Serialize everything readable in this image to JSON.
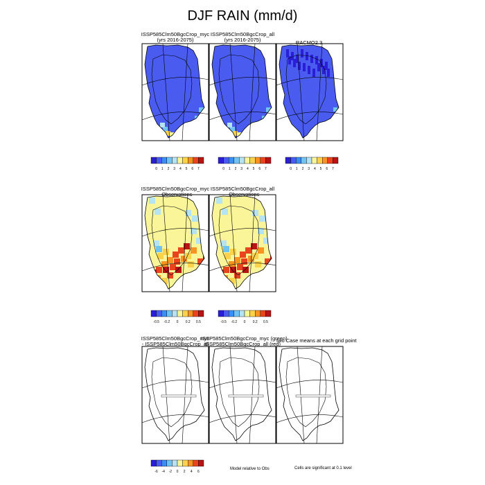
{
  "title": "DJF RAIN (mm/d)",
  "panels": [
    {
      "id": "p1",
      "title_lines": [
        "ISSP585Clm50BgcCrop_myc",
        "(yrs 2016-2075)"
      ],
      "kind": "field"
    },
    {
      "id": "p2",
      "title_lines": [
        "ISSP585Clm50BgcCrop_all",
        "(yrs 2016-2075)"
      ],
      "kind": "field"
    },
    {
      "id": "p3",
      "title_lines": [
        "RACMO2.3"
      ],
      "kind": "obs"
    },
    {
      "id": "p4",
      "title_lines": [
        "ISSP585Clm50BgcCrop_myc",
        "- Observations"
      ],
      "kind": "diff"
    },
    {
      "id": "p5",
      "title_lines": [
        "ISSP585Clm50BgcCrop_all",
        "- Observations"
      ],
      "kind": "diff"
    },
    {
      "id": "p6",
      "title_lines": [
        "ISSP585Clm50BgcCrop_myc",
        "- ISSP585Clm50BgcCrop_all"
      ],
      "kind": "blank"
    },
    {
      "id": "p7",
      "title_lines": [
        "ISSP585Clm50BgcCrop_myc (green)",
        "ISSP585Clm50BgcCrop_all (red)"
      ],
      "kind": "blank"
    },
    {
      "id": "p8",
      "title_lines": [
        "two Case means at each grid point"
      ],
      "kind": "blank"
    }
  ],
  "colorbars": [
    {
      "id": "cb1",
      "ticks": [
        "0",
        "1",
        "2",
        "3",
        "4",
        "5",
        "6",
        "7"
      ],
      "colors": [
        "#2a1fd6",
        "#4a5cf0",
        "#3a8ef7",
        "#72c3f2",
        "#b6e3f2",
        "#fbf59a",
        "#fbd24a",
        "#f99321",
        "#e8451e",
        "#b81414"
      ]
    },
    {
      "id": "cb2",
      "ticks": [
        "0",
        "1",
        "2",
        "3",
        "4",
        "5",
        "6",
        "7"
      ],
      "colors": [
        "#2a1fd6",
        "#4a5cf0",
        "#3a8ef7",
        "#72c3f2",
        "#b6e3f2",
        "#fbf59a",
        "#fbd24a",
        "#f99321",
        "#e8451e",
        "#b81414"
      ]
    },
    {
      "id": "cb3",
      "ticks": [
        "0",
        "1",
        "2",
        "3",
        "4",
        "5",
        "6",
        "7"
      ],
      "colors": [
        "#2a1fd6",
        "#4a5cf0",
        "#3a8ef7",
        "#72c3f2",
        "#b6e3f2",
        "#fbf59a",
        "#fbd24a",
        "#f99321",
        "#e8451e",
        "#b81414"
      ]
    },
    {
      "id": "cb4",
      "ticks": [
        "-0.5",
        "-0.2",
        "0",
        "0.2",
        "0.5"
      ],
      "colors": [
        "#2a1fd6",
        "#4a5cf0",
        "#3a8ef7",
        "#72c3f2",
        "#b6e3f2",
        "#fbf59a",
        "#fbd24a",
        "#f99321",
        "#e8451e",
        "#b81414"
      ]
    },
    {
      "id": "cb5",
      "ticks": [
        "-0.5",
        "-0.2",
        "0",
        "0.2",
        "0.5"
      ],
      "colors": [
        "#2a1fd6",
        "#4a5cf0",
        "#3a8ef7",
        "#72c3f2",
        "#b6e3f2",
        "#fbf59a",
        "#fbd24a",
        "#f99321",
        "#e8451e",
        "#b81414"
      ]
    },
    {
      "id": "cb6",
      "ticks": [
        "-6",
        "-4",
        "-2",
        "0",
        "2",
        "4",
        "6"
      ],
      "colors": [
        "#2a1fd6",
        "#4a5cf0",
        "#3a8ef7",
        "#72c3f2",
        "#b6e3f2",
        "#fbf59a",
        "#fbd24a",
        "#f99321",
        "#e8451e",
        "#b81414"
      ]
    }
  ],
  "footnotes": {
    "model_relative": "Model relative to Obs",
    "significance": "Cells are significant at 0.1 level"
  },
  "chart_data": {
    "type": "heatmap",
    "title": "DJF RAIN (mm/d)",
    "units": "mm/d",
    "field_levels": [
      0,
      1,
      2,
      3,
      4,
      5,
      6,
      7
    ],
    "difference_levels": [
      -0.5,
      -0.2,
      0,
      0.2,
      0.5
    ],
    "case_difference_levels": [
      -6,
      -4,
      -2,
      0,
      2,
      4,
      6
    ],
    "colors": {
      "ocean_bg": "#ffffff",
      "coast": "#000000"
    }
  }
}
